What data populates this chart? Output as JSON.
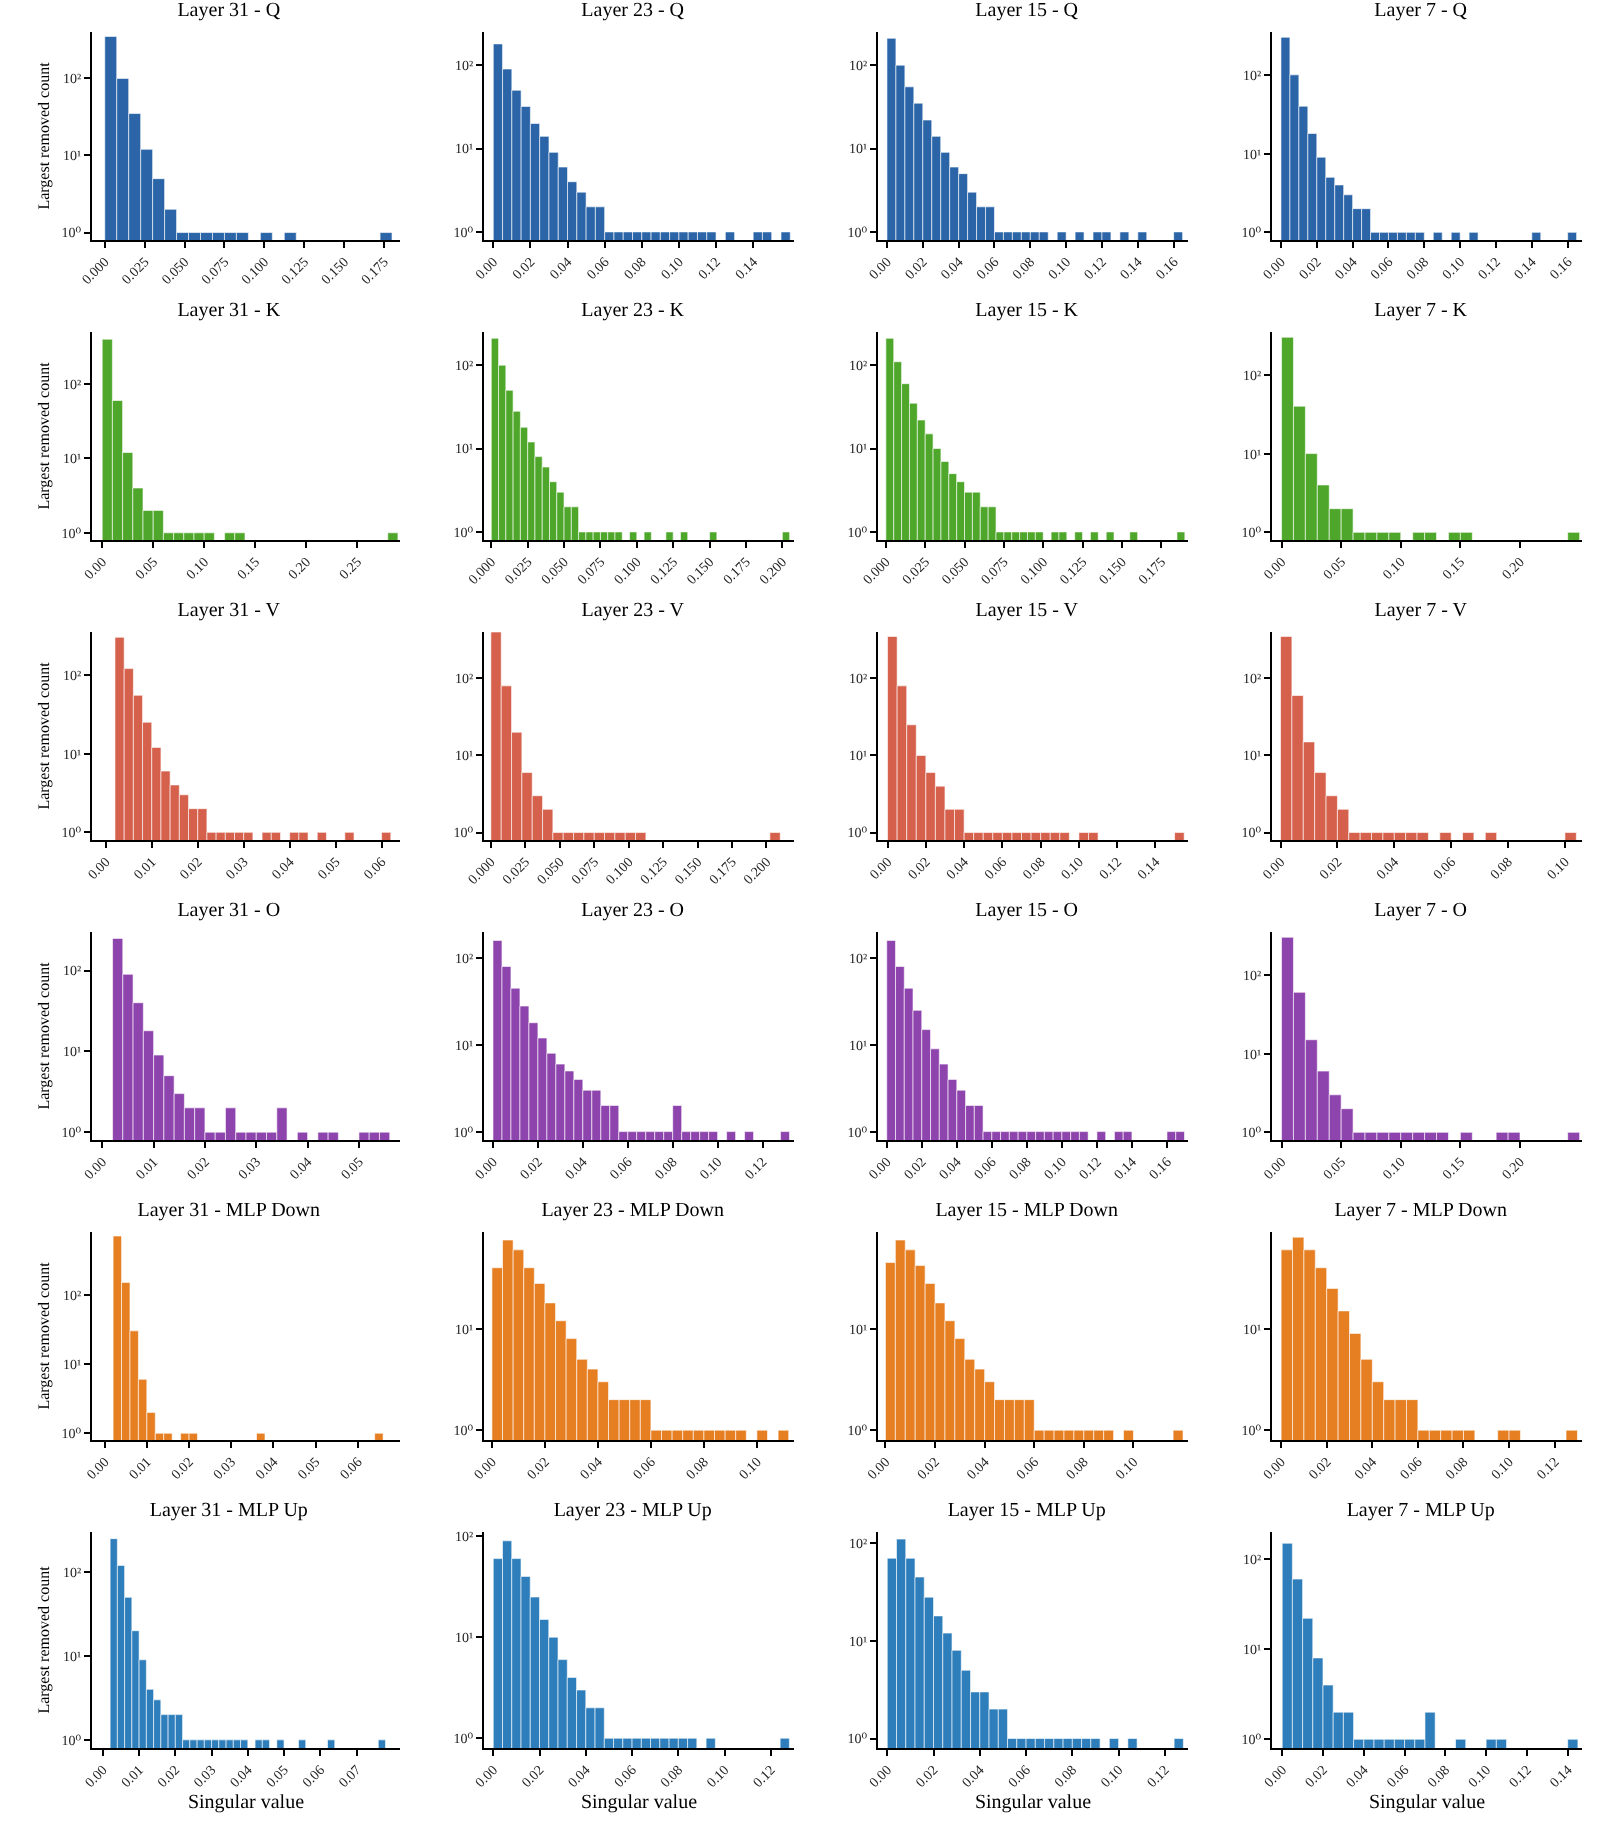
{
  "chart_data": [
    {
      "type": "histogram",
      "title": "Layer 31 - Q",
      "ylabel": "Largest removed count",
      "color": "#2b65a8",
      "log": true,
      "bins": [
        0,
        0.0075,
        0.015,
        0.0225,
        0.03,
        0.0375,
        0.045,
        0.0525,
        0.06,
        0.0675,
        0.075,
        0.0825,
        0.09,
        0.0975,
        0.105,
        0.1125,
        0.12,
        0.1275,
        0.135,
        0.1425,
        0.15,
        0.1575,
        0.165,
        0.1725,
        0.18
      ],
      "values": [
        350,
        100,
        35,
        12,
        5,
        2,
        1,
        1,
        1,
        1,
        1,
        1,
        null,
        1,
        null,
        1,
        null,
        null,
        null,
        null,
        null,
        null,
        null,
        1
      ],
      "xlim": [
        -0.008,
        0.185
      ],
      "xticks": [
        {
          "value": 0,
          "label": "0.000"
        },
        0.025,
        {
          "value": 0.05,
          "label": "0.050"
        },
        0.075,
        {
          "value": 0.1,
          "label": "0.100"
        },
        0.125,
        {
          "value": 0.15,
          "label": "0.150"
        },
        0.175
      ],
      "ylim": [
        0.8,
        400
      ],
      "yticks": [
        {
          "value": 1,
          "label": "10⁰"
        },
        {
          "value": 10,
          "label": "10¹"
        },
        {
          "value": 100,
          "label": "10²"
        }
      ]
    },
    {
      "type": "histogram",
      "title": "Layer 23 - Q",
      "color": "#2b65a8",
      "log": true,
      "bins": [
        0,
        0.005,
        0.01,
        0.015,
        0.02,
        0.025,
        0.03,
        0.035,
        0.04,
        0.045,
        0.05,
        0.055,
        0.06,
        0.065,
        0.07,
        0.075,
        0.08,
        0.085,
        0.09,
        0.095,
        0.1,
        0.105,
        0.11,
        0.115,
        0.12,
        0.125,
        0.13,
        0.135,
        0.14,
        0.145,
        0.15,
        0.155,
        0.16
      ],
      "values": [
        180,
        90,
        50,
        32,
        20,
        14,
        9,
        6,
        4,
        3,
        2,
        2,
        1,
        1,
        1,
        1,
        1,
        1,
        1,
        1,
        1,
        1,
        1,
        1,
        null,
        1,
        null,
        null,
        1,
        1,
        null,
        1
      ],
      "xlim": [
        -0.005,
        0.162
      ],
      "xticks": [
        {
          "value": 0,
          "label": "0.00"
        },
        0.02,
        0.04,
        0.06,
        0.08,
        {
          "value": 0.1,
          "label": "0.10"
        },
        0.12,
        0.14
      ],
      "ylim": [
        0.8,
        250
      ],
      "yticks": [
        {
          "value": 1,
          "label": "10⁰"
        },
        {
          "value": 10,
          "label": "10¹"
        },
        {
          "value": 100,
          "label": "10²"
        }
      ]
    },
    {
      "type": "histogram",
      "title": "Layer 15 - Q",
      "color": "#2b65a8",
      "log": true,
      "bins": [
        0,
        0.005,
        0.01,
        0.015,
        0.02,
        0.025,
        0.03,
        0.035,
        0.04,
        0.045,
        0.05,
        0.055,
        0.06,
        0.065,
        0.07,
        0.075,
        0.08,
        0.085,
        0.09,
        0.095,
        0.1,
        0.105,
        0.11,
        0.115,
        0.12,
        0.125,
        0.13,
        0.135,
        0.14,
        0.145,
        0.15,
        0.155,
        0.16,
        0.165
      ],
      "values": [
        210,
        100,
        55,
        35,
        22,
        14,
        9,
        6,
        5,
        3,
        2,
        2,
        1,
        1,
        1,
        1,
        1,
        1,
        null,
        1,
        null,
        1,
        null,
        1,
        1,
        null,
        1,
        null,
        1,
        null,
        null,
        null,
        1
      ],
      "xlim": [
        -0.005,
        0.168
      ],
      "xticks": [
        {
          "value": 0,
          "label": "0.00"
        },
        0.02,
        0.04,
        0.06,
        0.08,
        {
          "value": 0.1,
          "label": "0.10"
        },
        0.12,
        0.14,
        0.16
      ],
      "ylim": [
        0.8,
        250
      ],
      "yticks": [
        {
          "value": 1,
          "label": "10⁰"
        },
        {
          "value": 10,
          "label": "10¹"
        },
        {
          "value": 100,
          "label": "10²"
        }
      ]
    },
    {
      "type": "histogram",
      "title": "Layer 7 - Q",
      "color": "#2b65a8",
      "log": true,
      "bins": [
        0,
        0.005,
        0.01,
        0.015,
        0.02,
        0.025,
        0.03,
        0.035,
        0.04,
        0.045,
        0.05,
        0.055,
        0.06,
        0.065,
        0.07,
        0.075,
        0.08,
        0.085,
        0.09,
        0.095,
        0.1,
        0.105,
        0.11,
        0.115,
        0.12,
        0.125,
        0.13,
        0.135,
        0.14,
        0.145,
        0.15,
        0.155,
        0.16,
        0.165
      ],
      "values": [
        300,
        100,
        40,
        18,
        9,
        5,
        4,
        3,
        2,
        2,
        1,
        1,
        1,
        1,
        1,
        1,
        null,
        1,
        null,
        1,
        null,
        1,
        null,
        null,
        null,
        null,
        null,
        null,
        1,
        null,
        null,
        null,
        1
      ],
      "xlim": [
        -0.005,
        0.168
      ],
      "xticks": [
        {
          "value": 0,
          "label": "0.00"
        },
        0.02,
        0.04,
        0.06,
        0.08,
        {
          "value": 0.1,
          "label": "0.10"
        },
        0.12,
        0.14,
        0.16
      ],
      "ylim": [
        0.8,
        350
      ],
      "yticks": [
        {
          "value": 1,
          "label": "10⁰"
        },
        {
          "value": 10,
          "label": "10¹"
        },
        {
          "value": 100,
          "label": "10²"
        }
      ]
    },
    {
      "type": "histogram",
      "title": "Layer 31 - K",
      "ylabel": "Largest removed count",
      "color": "#4ea72a",
      "log": true,
      "bins": [
        0,
        0.01,
        0.02,
        0.03,
        0.04,
        0.05,
        0.06,
        0.07,
        0.08,
        0.09,
        0.1,
        0.11,
        0.12,
        0.13,
        0.14,
        0.15,
        0.16,
        0.17,
        0.18,
        0.19,
        0.2,
        0.21,
        0.22,
        0.23,
        0.24,
        0.25,
        0.26,
        0.27,
        0.28,
        0.29
      ],
      "values": [
        400,
        60,
        12,
        4,
        2,
        2,
        1,
        1,
        1,
        1,
        1,
        null,
        1,
        1,
        null,
        null,
        null,
        null,
        null,
        null,
        null,
        null,
        null,
        null,
        null,
        null,
        null,
        null,
        1
      ],
      "xlim": [
        -0.01,
        0.292
      ],
      "xticks": [
        {
          "value": 0,
          "label": "0.00"
        },
        0.05,
        {
          "value": 0.1,
          "label": "0.10"
        },
        0.15,
        {
          "value": 0.2,
          "label": "0.20"
        },
        0.25
      ],
      "ylim": [
        0.8,
        500
      ],
      "yticks": [
        {
          "value": 1,
          "label": "10⁰"
        },
        {
          "value": 10,
          "label": "10¹"
        },
        {
          "value": 100,
          "label": "10²"
        }
      ]
    },
    {
      "type": "histogram",
      "title": "Layer 23 - K",
      "color": "#4ea72a",
      "log": true,
      "bins": [
        0,
        0.005,
        0.01,
        0.015,
        0.02,
        0.025,
        0.03,
        0.035,
        0.04,
        0.045,
        0.05,
        0.055,
        0.06,
        0.065,
        0.07,
        0.075,
        0.08,
        0.085,
        0.09,
        0.095,
        0.1,
        0.105,
        0.11,
        0.115,
        0.12,
        0.125,
        0.13,
        0.135,
        0.14,
        0.145,
        0.15,
        0.155,
        0.16,
        0.165,
        0.17,
        0.175,
        0.18,
        0.185,
        0.19,
        0.195,
        0.2,
        0.205
      ],
      "values": [
        210,
        100,
        50,
        28,
        18,
        12,
        8,
        6,
        4,
        3,
        2,
        2,
        1,
        1,
        1,
        1,
        1,
        1,
        null,
        1,
        null,
        1,
        null,
        null,
        1,
        null,
        1,
        null,
        null,
        null,
        1,
        null,
        null,
        null,
        null,
        null,
        null,
        null,
        null,
        null,
        1
      ],
      "xlim": [
        -0.005,
        0.208
      ],
      "xticks": [
        {
          "value": 0,
          "label": "0.000"
        },
        0.025,
        {
          "value": 0.05,
          "label": "0.050"
        },
        0.075,
        {
          "value": 0.1,
          "label": "0.100"
        },
        0.125,
        {
          "value": 0.15,
          "label": "0.150"
        },
        0.175,
        {
          "value": 0.2,
          "label": "0.200"
        }
      ],
      "ylim": [
        0.8,
        250
      ],
      "yticks": [
        {
          "value": 1,
          "label": "10⁰"
        },
        {
          "value": 10,
          "label": "10¹"
        },
        {
          "value": 100,
          "label": "10²"
        }
      ]
    },
    {
      "type": "histogram",
      "title": "Layer 15 - K",
      "color": "#4ea72a",
      "log": true,
      "bins": [
        0,
        0.005,
        0.01,
        0.015,
        0.02,
        0.025,
        0.03,
        0.035,
        0.04,
        0.045,
        0.05,
        0.055,
        0.06,
        0.065,
        0.07,
        0.075,
        0.08,
        0.085,
        0.09,
        0.095,
        0.1,
        0.105,
        0.11,
        0.115,
        0.12,
        0.125,
        0.13,
        0.135,
        0.14,
        0.145,
        0.15,
        0.155,
        0.16,
        0.165,
        0.17,
        0.175,
        0.18,
        0.185,
        0.19
      ],
      "values": [
        210,
        110,
        60,
        35,
        22,
        15,
        10,
        7,
        5,
        4,
        3,
        3,
        2,
        2,
        1,
        1,
        1,
        1,
        1,
        1,
        null,
        1,
        1,
        null,
        1,
        null,
        1,
        null,
        1,
        null,
        null,
        1,
        null,
        null,
        null,
        null,
        null,
        1
      ],
      "xlim": [
        -0.005,
        0.192
      ],
      "xticks": [
        {
          "value": 0,
          "label": "0.000"
        },
        0.025,
        {
          "value": 0.05,
          "label": "0.050"
        },
        0.075,
        {
          "value": 0.1,
          "label": "0.100"
        },
        0.125,
        {
          "value": 0.15,
          "label": "0.150"
        },
        0.175
      ],
      "ylim": [
        0.8,
        250
      ],
      "yticks": [
        {
          "value": 1,
          "label": "10⁰"
        },
        {
          "value": 10,
          "label": "10¹"
        },
        {
          "value": 100,
          "label": "10²"
        }
      ]
    },
    {
      "type": "histogram",
      "title": "Layer 7 - K",
      "color": "#4ea72a",
      "log": true,
      "bins": [
        0,
        0.01,
        0.02,
        0.03,
        0.04,
        0.05,
        0.06,
        0.07,
        0.08,
        0.09,
        0.1,
        0.11,
        0.12,
        0.13,
        0.14,
        0.15,
        0.16,
        0.17,
        0.18,
        0.19,
        0.2,
        0.21,
        0.22,
        0.23,
        0.24,
        0.25
      ],
      "values": [
        300,
        40,
        10,
        4,
        2,
        2,
        1,
        1,
        1,
        1,
        null,
        1,
        1,
        null,
        1,
        1,
        null,
        null,
        null,
        null,
        null,
        null,
        null,
        null,
        1
      ],
      "xlim": [
        -0.008,
        0.252
      ],
      "xticks": [
        {
          "value": 0,
          "label": "0.00"
        },
        0.05,
        {
          "value": 0.1,
          "label": "0.10"
        },
        0.15,
        {
          "value": 0.2,
          "label": "0.20"
        }
      ],
      "ylim": [
        0.8,
        350
      ],
      "yticks": [
        {
          "value": 1,
          "label": "10⁰"
        },
        {
          "value": 10,
          "label": "10¹"
        },
        {
          "value": 100,
          "label": "10²"
        }
      ]
    },
    {
      "type": "histogram",
      "title": "Layer 31 - V",
      "ylabel": "Largest removed count",
      "color": "#d5604b",
      "log": true,
      "bins": [
        0,
        0.002,
        0.004,
        0.006,
        0.008,
        0.01,
        0.012,
        0.014,
        0.016,
        0.018,
        0.02,
        0.022,
        0.024,
        0.026,
        0.028,
        0.03,
        0.032,
        0.034,
        0.036,
        0.038,
        0.04,
        0.042,
        0.044,
        0.046,
        0.048,
        0.05,
        0.052,
        0.054,
        0.056,
        0.058,
        0.06,
        0.062
      ],
      "values": [
        null,
        300,
        120,
        55,
        25,
        12,
        6,
        4,
        3,
        2,
        2,
        1,
        1,
        1,
        1,
        1,
        null,
        1,
        1,
        null,
        1,
        1,
        null,
        1,
        null,
        null,
        1,
        null,
        null,
        null,
        1
      ],
      "xlim": [
        -0.003,
        0.064
      ],
      "xticks": [
        {
          "value": 0,
          "label": "0.00"
        },
        0.01,
        0.02,
        0.03,
        0.04,
        0.05,
        0.06
      ],
      "ylim": [
        0.8,
        350
      ],
      "yticks": [
        {
          "value": 1,
          "label": "10⁰"
        },
        {
          "value": 10,
          "label": "10¹"
        },
        {
          "value": 100,
          "label": "10²"
        }
      ]
    },
    {
      "type": "histogram",
      "title": "Layer 23 - V",
      "color": "#d5604b",
      "log": true,
      "bins": [
        0,
        0.0075,
        0.015,
        0.0225,
        0.03,
        0.0375,
        0.045,
        0.0525,
        0.06,
        0.0675,
        0.075,
        0.0825,
        0.09,
        0.0975,
        0.105,
        0.1125,
        0.12,
        0.1275,
        0.135,
        0.1425,
        0.15,
        0.1575,
        0.165,
        0.1725,
        0.18,
        0.1875,
        0.195,
        0.2025,
        0.21,
        0.2175
      ],
      "values": [
        400,
        80,
        20,
        6,
        3,
        2,
        1,
        1,
        1,
        1,
        1,
        1,
        1,
        1,
        1,
        null,
        null,
        null,
        null,
        null,
        null,
        null,
        null,
        null,
        null,
        null,
        null,
        1,
        null
      ],
      "xlim": [
        -0.005,
        0.22
      ],
      "xticks": [
        {
          "value": 0,
          "label": "0.000"
        },
        0.025,
        {
          "value": 0.05,
          "label": "0.050"
        },
        0.075,
        {
          "value": 0.1,
          "label": "0.100"
        },
        0.125,
        {
          "value": 0.15,
          "label": "0.150"
        },
        0.175,
        {
          "value": 0.2,
          "label": "0.200"
        }
      ],
      "ylim": [
        0.8,
        400
      ],
      "yticks": [
        {
          "value": 1,
          "label": "10⁰"
        },
        {
          "value": 10,
          "label": "10¹"
        },
        {
          "value": 100,
          "label": "10²"
        }
      ]
    },
    {
      "type": "histogram",
      "title": "Layer 15 - V",
      "color": "#d5604b",
      "log": true,
      "bins": [
        0,
        0.005,
        0.01,
        0.015,
        0.02,
        0.025,
        0.03,
        0.035,
        0.04,
        0.045,
        0.05,
        0.055,
        0.06,
        0.065,
        0.07,
        0.075,
        0.08,
        0.085,
        0.09,
        0.095,
        0.1,
        0.105,
        0.11,
        0.115,
        0.12,
        0.125,
        0.13,
        0.135,
        0.14,
        0.145,
        0.15,
        0.155
      ],
      "values": [
        350,
        80,
        25,
        10,
        6,
        4,
        2,
        2,
        1,
        1,
        1,
        1,
        1,
        1,
        1,
        1,
        1,
        1,
        1,
        null,
        1,
        1,
        null,
        null,
        null,
        null,
        null,
        null,
        null,
        null,
        1
      ],
      "xlim": [
        -0.005,
        0.157
      ],
      "xticks": [
        {
          "value": 0,
          "label": "0.00"
        },
        0.02,
        0.04,
        0.06,
        0.08,
        {
          "value": 0.1,
          "label": "0.10"
        },
        0.12,
        0.14
      ],
      "ylim": [
        0.8,
        400
      ],
      "yticks": [
        {
          "value": 1,
          "label": "10⁰"
        },
        {
          "value": 10,
          "label": "10¹"
        },
        {
          "value": 100,
          "label": "10²"
        }
      ]
    },
    {
      "type": "histogram",
      "title": "Layer 7 - V",
      "color": "#d5604b",
      "log": true,
      "bins": [
        0,
        0.004,
        0.008,
        0.012,
        0.016,
        0.02,
        0.024,
        0.028,
        0.032,
        0.036,
        0.04,
        0.044,
        0.048,
        0.052,
        0.056,
        0.06,
        0.064,
        0.068,
        0.072,
        0.076,
        0.08,
        0.084,
        0.088,
        0.092,
        0.096,
        0.1,
        0.104
      ],
      "values": [
        350,
        60,
        15,
        6,
        3,
        2,
        1,
        1,
        1,
        1,
        1,
        1,
        1,
        null,
        1,
        null,
        1,
        null,
        1,
        null,
        null,
        null,
        null,
        null,
        null,
        1
      ],
      "xlim": [
        -0.003,
        0.106
      ],
      "xticks": [
        {
          "value": 0,
          "label": "0.00"
        },
        0.02,
        0.04,
        0.06,
        0.08,
        {
          "value": 0.1,
          "label": "0.10"
        }
      ],
      "ylim": [
        0.8,
        400
      ],
      "yticks": [
        {
          "value": 1,
          "label": "10⁰"
        },
        {
          "value": 10,
          "label": "10¹"
        },
        {
          "value": 100,
          "label": "10²"
        }
      ]
    },
    {
      "type": "histogram",
      "title": "Layer 31 - O",
      "ylabel": "Largest removed count",
      "color": "#8e44ad",
      "log": true,
      "bins": [
        0,
        0.002,
        0.004,
        0.006,
        0.008,
        0.01,
        0.012,
        0.014,
        0.016,
        0.018,
        0.02,
        0.022,
        0.024,
        0.026,
        0.028,
        0.03,
        0.032,
        0.034,
        0.036,
        0.038,
        0.04,
        0.042,
        0.044,
        0.046,
        0.048,
        0.05,
        0.052,
        0.054,
        0.056
      ],
      "values": [
        null,
        250,
        90,
        40,
        18,
        9,
        5,
        3,
        2,
        2,
        1,
        1,
        2,
        1,
        1,
        1,
        1,
        2,
        null,
        1,
        null,
        1,
        1,
        null,
        null,
        1,
        1,
        1
      ],
      "xlim": [
        -0.002,
        0.058
      ],
      "xticks": [
        {
          "value": 0,
          "label": "0.00"
        },
        0.01,
        0.02,
        0.03,
        0.04,
        0.05
      ],
      "ylim": [
        0.8,
        300
      ],
      "yticks": [
        {
          "value": 1,
          "label": "10⁰"
        },
        {
          "value": 10,
          "label": "10¹"
        },
        {
          "value": 100,
          "label": "10²"
        }
      ]
    },
    {
      "type": "histogram",
      "title": "Layer 23 - O",
      "color": "#8e44ad",
      "log": true,
      "bins": [
        0,
        0.004,
        0.008,
        0.012,
        0.016,
        0.02,
        0.024,
        0.028,
        0.032,
        0.036,
        0.04,
        0.044,
        0.048,
        0.052,
        0.056,
        0.06,
        0.064,
        0.068,
        0.072,
        0.076,
        0.08,
        0.084,
        0.088,
        0.092,
        0.096,
        0.1,
        0.104,
        0.108,
        0.112,
        0.116,
        0.12,
        0.124,
        0.128,
        0.132
      ],
      "values": [
        160,
        80,
        45,
        28,
        18,
        12,
        8,
        6,
        5,
        4,
        3,
        3,
        2,
        2,
        1,
        1,
        1,
        1,
        1,
        1,
        2,
        1,
        1,
        1,
        1,
        null,
        1,
        null,
        1,
        null,
        null,
        null,
        1
      ],
      "xlim": [
        -0.004,
        0.134
      ],
      "xticks": [
        {
          "value": 0,
          "label": "0.00"
        },
        0.02,
        0.04,
        0.06,
        0.08,
        {
          "value": 0.1,
          "label": "0.10"
        },
        0.12
      ],
      "ylim": [
        0.8,
        200
      ],
      "yticks": [
        {
          "value": 1,
          "label": "10⁰"
        },
        {
          "value": 10,
          "label": "10¹"
        },
        {
          "value": 100,
          "label": "10²"
        }
      ]
    },
    {
      "type": "histogram",
      "title": "Layer 15 - O",
      "color": "#8e44ad",
      "log": true,
      "bins": [
        0,
        0.005,
        0.01,
        0.015,
        0.02,
        0.025,
        0.03,
        0.035,
        0.04,
        0.045,
        0.05,
        0.055,
        0.06,
        0.065,
        0.07,
        0.075,
        0.08,
        0.085,
        0.09,
        0.095,
        0.1,
        0.105,
        0.11,
        0.115,
        0.12,
        0.125,
        0.13,
        0.135,
        0.14,
        0.145,
        0.15,
        0.155,
        0.16,
        0.165,
        0.17
      ],
      "values": [
        160,
        80,
        45,
        25,
        15,
        9,
        6,
        4,
        3,
        2,
        2,
        1,
        1,
        1,
        1,
        1,
        1,
        1,
        1,
        1,
        1,
        1,
        1,
        null,
        1,
        null,
        1,
        1,
        null,
        null,
        null,
        null,
        1,
        1
      ],
      "xlim": [
        -0.005,
        0.172
      ],
      "xticks": [
        {
          "value": 0,
          "label": "0.00"
        },
        0.02,
        0.04,
        0.06,
        0.08,
        {
          "value": 0.1,
          "label": "0.10"
        },
        0.12,
        0.14,
        0.16
      ],
      "ylim": [
        0.8,
        200
      ],
      "yticks": [
        {
          "value": 1,
          "label": "10⁰"
        },
        {
          "value": 10,
          "label": "10¹"
        },
        {
          "value": 100,
          "label": "10²"
        }
      ]
    },
    {
      "type": "histogram",
      "title": "Layer 7 - O",
      "color": "#8e44ad",
      "log": true,
      "bins": [
        0,
        0.01,
        0.02,
        0.03,
        0.04,
        0.05,
        0.06,
        0.07,
        0.08,
        0.09,
        0.1,
        0.11,
        0.12,
        0.13,
        0.14,
        0.15,
        0.16,
        0.17,
        0.18,
        0.19,
        0.2,
        0.21,
        0.22,
        0.23,
        0.24,
        0.25
      ],
      "values": [
        300,
        60,
        15,
        6,
        3,
        2,
        1,
        1,
        1,
        1,
        1,
        1,
        1,
        1,
        null,
        1,
        null,
        null,
        1,
        1,
        null,
        null,
        null,
        null,
        1
      ],
      "xlim": [
        -0.008,
        0.252
      ],
      "xticks": [
        {
          "value": 0,
          "label": "0.00"
        },
        0.05,
        {
          "value": 0.1,
          "label": "0.10"
        },
        0.15,
        {
          "value": 0.2,
          "label": "0.20"
        }
      ],
      "ylim": [
        0.8,
        350
      ],
      "yticks": [
        {
          "value": 1,
          "label": "10⁰"
        },
        {
          "value": 10,
          "label": "10¹"
        },
        {
          "value": 100,
          "label": "10²"
        }
      ]
    },
    {
      "type": "histogram",
      "title": "Layer 31 - MLP Down",
      "ylabel": "Largest removed count",
      "color": "#e67e22",
      "log": true,
      "bins": [
        0,
        0.002,
        0.004,
        0.006,
        0.008,
        0.01,
        0.012,
        0.014,
        0.016,
        0.018,
        0.02,
        0.022,
        0.024,
        0.026,
        0.028,
        0.03,
        0.032,
        0.034,
        0.036,
        0.038,
        0.04,
        0.042,
        0.044,
        0.046,
        0.048,
        0.05,
        0.052,
        0.054,
        0.056,
        0.058,
        0.06,
        0.062,
        0.064,
        0.066,
        0.068
      ],
      "values": [
        null,
        700,
        150,
        30,
        6,
        2,
        1,
        1,
        null,
        1,
        1,
        null,
        null,
        null,
        null,
        null,
        null,
        null,
        1,
        null,
        null,
        null,
        null,
        null,
        null,
        null,
        null,
        null,
        null,
        null,
        null,
        null,
        1,
        null
      ],
      "xlim": [
        -0.003,
        0.07
      ],
      "xticks": [
        {
          "value": 0,
          "label": "0.00"
        },
        0.01,
        0.02,
        0.03,
        0.04,
        0.05,
        0.06
      ],
      "ylim": [
        0.8,
        800
      ],
      "yticks": [
        {
          "value": 1,
          "label": "10⁰"
        },
        {
          "value": 10,
          "label": "10¹"
        },
        {
          "value": 100,
          "label": "10²"
        }
      ]
    },
    {
      "type": "histogram",
      "title": "Layer 23 - MLP Down",
      "color": "#e67e22",
      "log": true,
      "bins": [
        0,
        0.004,
        0.008,
        0.012,
        0.016,
        0.02,
        0.024,
        0.028,
        0.032,
        0.036,
        0.04,
        0.044,
        0.048,
        0.052,
        0.056,
        0.06,
        0.064,
        0.068,
        0.072,
        0.076,
        0.08,
        0.084,
        0.088,
        0.092,
        0.096,
        0.1,
        0.104,
        0.108,
        0.112
      ],
      "values": [
        40,
        75,
        60,
        40,
        28,
        18,
        12,
        8,
        5,
        4,
        3,
        2,
        2,
        2,
        2,
        1,
        1,
        1,
        1,
        1,
        1,
        1,
        1,
        1,
        null,
        1,
        null,
        1
      ],
      "xlim": [
        -0.003,
        0.114
      ],
      "xticks": [
        {
          "value": 0,
          "label": "0.00"
        },
        0.02,
        0.04,
        0.06,
        0.08,
        {
          "value": 0.1,
          "label": "0.10"
        }
      ],
      "ylim": [
        0.8,
        90
      ],
      "yticks": [
        {
          "value": 1,
          "label": "10⁰"
        },
        {
          "value": 10,
          "label": "10¹"
        }
      ]
    },
    {
      "type": "histogram",
      "title": "Layer 15 - MLP Down",
      "color": "#e67e22",
      "log": true,
      "bins": [
        0,
        0.004,
        0.008,
        0.012,
        0.016,
        0.02,
        0.024,
        0.028,
        0.032,
        0.036,
        0.04,
        0.044,
        0.048,
        0.052,
        0.056,
        0.06,
        0.064,
        0.068,
        0.072,
        0.076,
        0.08,
        0.084,
        0.088,
        0.092,
        0.096,
        0.1,
        0.104,
        0.108,
        0.112,
        0.116,
        0.12
      ],
      "values": [
        45,
        75,
        60,
        42,
        28,
        18,
        12,
        8,
        5,
        4,
        3,
        2,
        2,
        2,
        2,
        1,
        1,
        1,
        1,
        1,
        1,
        1,
        1,
        null,
        1,
        null,
        null,
        null,
        null,
        1
      ],
      "xlim": [
        -0.003,
        0.122
      ],
      "xticks": [
        {
          "value": 0,
          "label": "0.00"
        },
        0.02,
        0.04,
        0.06,
        0.08,
        {
          "value": 0.1,
          "label": "0.10"
        }
      ],
      "ylim": [
        0.8,
        90
      ],
      "yticks": [
        {
          "value": 1,
          "label": "10⁰"
        },
        {
          "value": 10,
          "label": "10¹"
        }
      ]
    },
    {
      "type": "histogram",
      "title": "Layer 7 - MLP Down",
      "color": "#e67e22",
      "log": true,
      "bins": [
        0,
        0.005,
        0.01,
        0.015,
        0.02,
        0.025,
        0.03,
        0.035,
        0.04,
        0.045,
        0.05,
        0.055,
        0.06,
        0.065,
        0.07,
        0.075,
        0.08,
        0.085,
        0.09,
        0.095,
        0.1,
        0.105,
        0.11,
        0.115,
        0.12,
        0.125,
        0.13
      ],
      "values": [
        60,
        80,
        60,
        40,
        25,
        15,
        9,
        5,
        3,
        2,
        2,
        2,
        1,
        1,
        1,
        1,
        1,
        null,
        null,
        1,
        1,
        null,
        null,
        null,
        null,
        1
      ],
      "xlim": [
        -0.004,
        0.132
      ],
      "xticks": [
        {
          "value": 0,
          "label": "0.00"
        },
        0.02,
        0.04,
        0.06,
        0.08,
        {
          "value": 0.1,
          "label": "0.10"
        },
        0.12
      ],
      "ylim": [
        0.8,
        90
      ],
      "yticks": [
        {
          "value": 1,
          "label": "10⁰"
        },
        {
          "value": 10,
          "label": "10¹"
        }
      ]
    },
    {
      "type": "histogram",
      "title": "Layer 31 - MLP Up",
      "ylabel": "Largest removed count",
      "xlabel": "Singular value",
      "color": "#2e7ebb",
      "log": true,
      "bins": [
        0,
        0.002,
        0.004,
        0.006,
        0.008,
        0.01,
        0.012,
        0.014,
        0.016,
        0.018,
        0.02,
        0.022,
        0.024,
        0.026,
        0.028,
        0.03,
        0.032,
        0.034,
        0.036,
        0.038,
        0.04,
        0.042,
        0.044,
        0.046,
        0.048,
        0.05,
        0.052,
        0.054,
        0.056,
        0.058,
        0.06,
        0.062,
        0.064,
        0.066,
        0.068,
        0.07,
        0.072,
        0.074,
        0.076,
        0.078,
        0.08
      ],
      "values": [
        null,
        250,
        120,
        50,
        20,
        9,
        4,
        3,
        2,
        2,
        2,
        1,
        1,
        1,
        1,
        1,
        1,
        1,
        1,
        1,
        null,
        1,
        1,
        null,
        1,
        null,
        null,
        1,
        null,
        null,
        null,
        1,
        null,
        null,
        null,
        null,
        null,
        null,
        1,
        null
      ],
      "xlim": [
        -0.003,
        0.082
      ],
      "xticks": [
        {
          "value": 0,
          "label": "0.00"
        },
        0.01,
        0.02,
        0.03,
        0.04,
        0.05,
        0.06,
        0.07
      ],
      "ylim": [
        0.8,
        300
      ],
      "yticks": [
        {
          "value": 1,
          "label": "10⁰"
        },
        {
          "value": 10,
          "label": "10¹"
        },
        {
          "value": 100,
          "label": "10²"
        }
      ]
    },
    {
      "type": "histogram",
      "title": "Layer 23 - MLP Up",
      "xlabel": "Singular value",
      "color": "#2e7ebb",
      "log": true,
      "bins": [
        0,
        0.004,
        0.008,
        0.012,
        0.016,
        0.02,
        0.024,
        0.028,
        0.032,
        0.036,
        0.04,
        0.044,
        0.048,
        0.052,
        0.056,
        0.06,
        0.064,
        0.068,
        0.072,
        0.076,
        0.08,
        0.084,
        0.088,
        0.092,
        0.096,
        0.1,
        0.104,
        0.108,
        0.112,
        0.116,
        0.12,
        0.124,
        0.128
      ],
      "values": [
        60,
        90,
        60,
        40,
        25,
        15,
        10,
        6,
        4,
        3,
        2,
        2,
        1,
        1,
        1,
        1,
        1,
        1,
        1,
        1,
        1,
        1,
        null,
        1,
        null,
        null,
        null,
        null,
        null,
        null,
        null,
        1
      ],
      "xlim": [
        -0.004,
        0.13
      ],
      "xticks": [
        {
          "value": 0,
          "label": "0.00"
        },
        0.02,
        0.04,
        0.06,
        0.08,
        {
          "value": 0.1,
          "label": "0.10"
        },
        0.12
      ],
      "ylim": [
        0.8,
        110
      ],
      "yticks": [
        {
          "value": 1,
          "label": "10⁰"
        },
        {
          "value": 10,
          "label": "10¹"
        },
        {
          "value": 100,
          "label": "10²"
        }
      ]
    },
    {
      "type": "histogram",
      "title": "Layer 15 - MLP Up",
      "xlabel": "Singular value",
      "color": "#2e7ebb",
      "log": true,
      "bins": [
        0,
        0.004,
        0.008,
        0.012,
        0.016,
        0.02,
        0.024,
        0.028,
        0.032,
        0.036,
        0.04,
        0.044,
        0.048,
        0.052,
        0.056,
        0.06,
        0.064,
        0.068,
        0.072,
        0.076,
        0.08,
        0.084,
        0.088,
        0.092,
        0.096,
        0.1,
        0.104,
        0.108,
        0.112,
        0.116,
        0.12,
        0.124,
        0.128
      ],
      "values": [
        70,
        110,
        70,
        45,
        28,
        18,
        12,
        8,
        5,
        3,
        3,
        2,
        2,
        1,
        1,
        1,
        1,
        1,
        1,
        1,
        1,
        1,
        1,
        null,
        1,
        null,
        1,
        null,
        null,
        null,
        null,
        1
      ],
      "xlim": [
        -0.004,
        0.13
      ],
      "xticks": [
        {
          "value": 0,
          "label": "0.00"
        },
        0.02,
        0.04,
        0.06,
        0.08,
        {
          "value": 0.1,
          "label": "0.10"
        },
        0.12
      ],
      "ylim": [
        0.8,
        130
      ],
      "yticks": [
        {
          "value": 1,
          "label": "10⁰"
        },
        {
          "value": 10,
          "label": "10¹"
        },
        {
          "value": 100,
          "label": "10²"
        }
      ]
    },
    {
      "type": "histogram",
      "title": "Layer 7 - MLP Up",
      "xlabel": "Singular value",
      "color": "#2e7ebb",
      "log": true,
      "bins": [
        0,
        0.005,
        0.01,
        0.015,
        0.02,
        0.025,
        0.03,
        0.035,
        0.04,
        0.045,
        0.05,
        0.055,
        0.06,
        0.065,
        0.07,
        0.075,
        0.08,
        0.085,
        0.09,
        0.095,
        0.1,
        0.105,
        0.11,
        0.115,
        0.12,
        0.125,
        0.13,
        0.135,
        0.14,
        0.145
      ],
      "values": [
        150,
        60,
        22,
        8,
        4,
        2,
        2,
        1,
        1,
        1,
        1,
        1,
        1,
        1,
        2,
        null,
        null,
        1,
        null,
        null,
        1,
        1,
        null,
        null,
        null,
        null,
        null,
        null,
        1
      ],
      "xlim": [
        -0.005,
        0.147
      ],
      "xticks": [
        {
          "value": 0,
          "label": "0.00"
        },
        0.02,
        0.04,
        0.06,
        0.08,
        {
          "value": 0.1,
          "label": "0.10"
        },
        0.12,
        0.14
      ],
      "ylim": [
        0.8,
        200
      ],
      "yticks": [
        {
          "value": 1,
          "label": "10⁰"
        },
        {
          "value": 10,
          "label": "10¹"
        },
        {
          "value": 100,
          "label": "10²"
        }
      ]
    }
  ]
}
